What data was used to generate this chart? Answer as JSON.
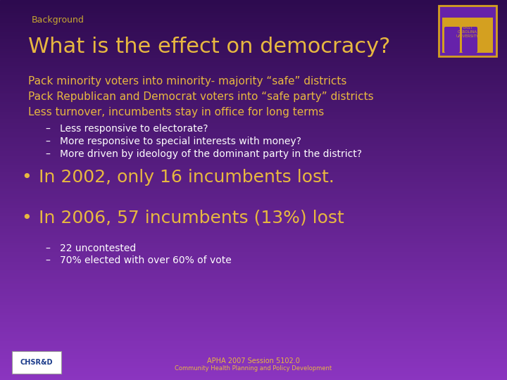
{
  "background_color_top": "#2d0a4e",
  "background_color_bottom": "#8b35c0",
  "tab_label": "Background",
  "tab_color": "#c8a830",
  "title": "What is the effect on democracy?",
  "title_color": "#e8b840",
  "title_fontsize": 22,
  "body_color": "#e8b840",
  "body_fontsize": 11,
  "bullet_color": "#e8b840",
  "bullet_fontsize": 18,
  "sub_color": "#ffffff",
  "sub_fontsize": 10,
  "footer_color": "#e8b840",
  "footer_fontsize": 7,
  "lines": [
    "Pack minority voters into minority- majority “safe” districts",
    "Pack Republican and Democrat voters into “safe party” districts",
    "Less turnover, incumbents stay in office for long terms"
  ],
  "sub_lines": [
    "–   Less responsive to electorate?",
    "–   More responsive to special interests with money?",
    "–   More driven by ideology of the dominant party in the district?"
  ],
  "bullets": [
    "In 2002, only 16 incumbents lost.",
    "In 2006, 57 incumbents (13%) lost"
  ],
  "bullet_subs": [
    "–   22 uncontested",
    "–   70% elected with over 60% of vote"
  ],
  "footer_line1": "APHA 2007 Session 5102.0",
  "footer_line2": "Community Health Planning and Policy Development"
}
